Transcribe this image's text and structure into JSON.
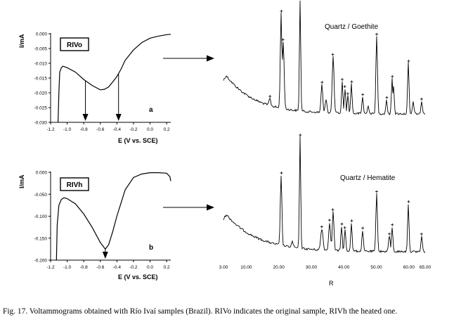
{
  "figure": {
    "panel_a": {
      "sample_label": "RIVo",
      "panel_letter": "a",
      "ylabel": "I/mA",
      "xlabel": "E (V vs. SCE)",
      "x_ticks": [
        "-1.2",
        "-1.0",
        "-0.8",
        "-0.6",
        "-0.4",
        "-0.2",
        "0.0",
        "0.2"
      ],
      "y_ticks": [
        "0.000",
        "-0.005",
        "-0.010",
        "-0.015",
        "-0.020",
        "-0.025",
        "-0.030"
      ]
    },
    "panel_b": {
      "sample_label": "RIVh",
      "panel_letter": "b",
      "ylabel": "I/mA",
      "xlabel": "E (V vs. SCE)",
      "x_ticks": [
        "-1.2",
        "-1.0",
        "-0.8",
        "-0.6",
        "-0.4",
        "-0.2",
        "0.0",
        "0.2"
      ],
      "y_ticks": [
        "0.000",
        "-0.050",
        "-0.100",
        "-0.150",
        "-0.200"
      ]
    },
    "xrd_top": {
      "phase_label": "Quartz / Goethite"
    },
    "xrd_bottom": {
      "phase_label": "Quartz / Hematite",
      "x_ticks": [
        "3.00",
        "10.00",
        "20.00",
        "30.00",
        "40.00",
        "50.00",
        "60.00",
        "65.00"
      ],
      "xlabel": "R"
    }
  },
  "caption": "Fig. 17. Voltammograms obtained with Río Ivaí samples (Brazil). RIVo indicates the original sample, RIVh the heated one.",
  "chart_data": [
    {
      "type": "line",
      "panel": "a",
      "title": "",
      "xlabel": "E (V vs. SCE)",
      "ylabel": "I/mA",
      "xlim": [
        -1.2,
        0.25
      ],
      "ylim": [
        -0.03,
        0.0
      ],
      "annotations": [
        "RIVo",
        "a"
      ],
      "arrow_markers_x": [
        -0.78,
        -0.38
      ],
      "series": [
        {
          "x": [
            -1.11,
            -1.1,
            -1.09,
            -1.07,
            -1.05,
            -1.0,
            -0.9,
            -0.8,
            -0.7,
            -0.6,
            -0.55,
            -0.5,
            -0.45,
            -0.4,
            -0.35,
            -0.3,
            -0.2,
            -0.1,
            0.0,
            0.1,
            0.2,
            0.25
          ],
          "y": [
            -0.03,
            -0.02,
            -0.013,
            -0.0115,
            -0.011,
            -0.0115,
            -0.013,
            -0.0155,
            -0.0175,
            -0.019,
            -0.0188,
            -0.018,
            -0.0163,
            -0.0145,
            -0.012,
            -0.009,
            -0.0055,
            -0.003,
            -0.0015,
            -0.0008,
            -0.0003,
            -0.0002
          ]
        }
      ]
    },
    {
      "type": "line",
      "panel": "b",
      "title": "",
      "xlabel": "E (V vs. SCE)",
      "ylabel": "I/mA",
      "xlim": [
        -1.2,
        0.25
      ],
      "ylim": [
        -0.2,
        0.0
      ],
      "annotations": [
        "RIVh",
        "b"
      ],
      "arrow_markers_x": [
        -0.54
      ],
      "series": [
        {
          "x": [
            -1.13,
            -1.12,
            -1.1,
            -1.07,
            -1.04,
            -1.0,
            -0.9,
            -0.8,
            -0.7,
            -0.6,
            -0.54,
            -0.5,
            -0.45,
            -0.4,
            -0.35,
            -0.3,
            -0.2,
            -0.1,
            0.0,
            0.1,
            0.2,
            0.24,
            0.25
          ],
          "y": [
            -0.2,
            -0.12,
            -0.075,
            -0.062,
            -0.058,
            -0.06,
            -0.072,
            -0.095,
            -0.125,
            -0.16,
            -0.175,
            -0.165,
            -0.135,
            -0.1,
            -0.07,
            -0.04,
            -0.012,
            -0.004,
            -0.001,
            -0.001,
            -0.002,
            -0.01,
            -0.02
          ]
        }
      ]
    },
    {
      "type": "line",
      "panel": "xrd-top",
      "title": "",
      "annotations": [
        "Quartz / Goethite"
      ],
      "xlim": [
        3,
        65
      ],
      "series": [
        {
          "x": [
            3,
            10,
            17,
            20.8,
            21.2,
            26.6,
            27,
            36.5,
            40,
            42.4,
            50,
            55,
            59.9,
            65
          ]
        }
      ]
    },
    {
      "type": "line",
      "panel": "xrd-bottom",
      "title": "",
      "xlabel": "R",
      "annotations": [
        "Quartz / Hematite"
      ],
      "xlim": [
        3,
        65
      ],
      "x_ticks": [
        "3.00",
        "10.00",
        "20.00",
        "30.00",
        "40.00",
        "50.00",
        "60.00",
        "65.00"
      ],
      "series": [
        {
          "x": [
            3,
            10,
            17,
            20.8,
            26.6,
            36.5,
            39.4,
            40.3,
            42.4,
            45.8,
            50.1,
            54.9,
            59.9,
            63.9,
            65
          ]
        }
      ]
    }
  ]
}
